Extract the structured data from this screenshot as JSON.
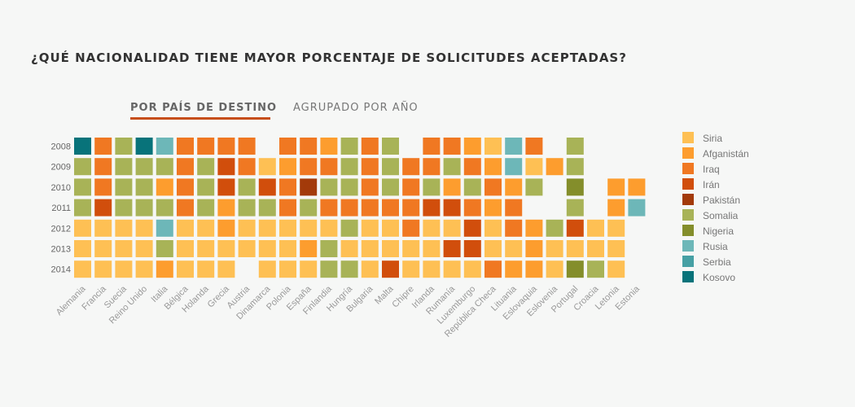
{
  "title": "¿QUÉ NACIONALIDAD TIENE MAYOR PORCENTAJE DE SOLICITUDES ACEPTADAS?",
  "tabs": [
    {
      "label": "POR PAÍS DE DESTINO",
      "active": true
    },
    {
      "label": "AGRUPADO POR AÑO",
      "active": false
    }
  ],
  "chart_data": {
    "type": "heatmap",
    "x": [
      "Alemania",
      "Francia",
      "Suecia",
      "Reino Unido",
      "Italia",
      "Bélgica",
      "Holanda",
      "Grecia",
      "Austria",
      "Dinamarca",
      "Polonia",
      "España",
      "Finlandia",
      "Hungría",
      "Bulgaria",
      "Malta",
      "Chipre",
      "Irlanda",
      "Rumanía",
      "Luxemburgo",
      "República Checa",
      "Lituania",
      "Eslovaquia",
      "Eslovenia",
      "Portugal",
      "Croacia",
      "Letonia",
      "Estonia"
    ],
    "y": [
      "2008",
      "2009",
      "2010",
      "2011",
      "2012",
      "2013",
      "2014"
    ],
    "legend": [
      {
        "name": "Siria",
        "color": "#fec054"
      },
      {
        "name": "Afganistán",
        "color": "#fd9d2e"
      },
      {
        "name": "Iraq",
        "color": "#f07822"
      },
      {
        "name": "Irán",
        "color": "#d14e0c"
      },
      {
        "name": "Pakistán",
        "color": "#a33a0a"
      },
      {
        "name": "Somalia",
        "color": "#a8b357"
      },
      {
        "name": "Nigeria",
        "color": "#848e2b"
      },
      {
        "name": "Rusia",
        "color": "#6db7b8"
      },
      {
        "name": "Serbia",
        "color": "#46a0a4"
      },
      {
        "name": "Kosovo",
        "color": "#08737a"
      }
    ],
    "cells": {
      "2008": [
        "Kosovo",
        "Iraq",
        "Somalia",
        "Kosovo",
        "Rusia",
        "Iraq",
        "Iraq",
        "Iraq",
        "Iraq",
        null,
        "Iraq",
        "Iraq",
        "Afganistán",
        "Somalia",
        "Iraq",
        "Somalia",
        null,
        "Iraq",
        "Iraq",
        "Afganistán",
        "Siria",
        "Rusia",
        "Iraq",
        null,
        "Somalia",
        null,
        null,
        null
      ],
      "2009": [
        "Somalia",
        "Iraq",
        "Somalia",
        "Somalia",
        "Somalia",
        "Iraq",
        "Somalia",
        "Irán",
        "Iraq",
        "Siria",
        "Afganistán",
        "Iraq",
        "Iraq",
        "Somalia",
        "Iraq",
        "Somalia",
        "Iraq",
        "Iraq",
        "Somalia",
        "Iraq",
        "Afganistán",
        "Rusia",
        "Siria",
        "Afganistán",
        "Somalia",
        null,
        null,
        null
      ],
      "2010": [
        "Somalia",
        "Iraq",
        "Somalia",
        "Somalia",
        "Afganistán",
        "Iraq",
        "Somalia",
        "Irán",
        "Somalia",
        "Irán",
        "Iraq",
        "Pakistán",
        "Somalia",
        "Somalia",
        "Iraq",
        "Somalia",
        "Iraq",
        "Somalia",
        "Afganistán",
        "Somalia",
        "Iraq",
        "Afganistán",
        "Somalia",
        null,
        "Nigeria",
        null,
        "Afganistán",
        "Afganistán"
      ],
      "2011": [
        "Somalia",
        "Irán",
        "Somalia",
        "Somalia",
        "Somalia",
        "Iraq",
        "Somalia",
        "Afganistán",
        "Somalia",
        "Somalia",
        "Iraq",
        "Somalia",
        "Iraq",
        "Iraq",
        "Iraq",
        "Iraq",
        "Iraq",
        "Irán",
        "Irán",
        "Iraq",
        "Afganistán",
        "Iraq",
        null,
        null,
        "Somalia",
        null,
        "Afganistán",
        "Rusia"
      ],
      "2012": [
        "Siria",
        "Siria",
        "Siria",
        "Siria",
        "Rusia",
        "Siria",
        "Siria",
        "Afganistán",
        "Siria",
        "Siria",
        "Siria",
        "Siria",
        "Siria",
        "Somalia",
        "Siria",
        "Siria",
        "Iraq",
        "Siria",
        "Siria",
        "Irán",
        "Siria",
        "Iraq",
        "Afganistán",
        "Somalia",
        "Irán",
        "Siria",
        "Siria",
        null
      ],
      "2013": [
        "Siria",
        "Siria",
        "Siria",
        "Siria",
        "Somalia",
        "Siria",
        "Siria",
        "Siria",
        "Siria",
        "Siria",
        "Siria",
        "Afganistán",
        "Somalia",
        "Siria",
        "Siria",
        "Siria",
        "Siria",
        "Siria",
        "Irán",
        "Irán",
        "Siria",
        "Siria",
        "Afganistán",
        "Siria",
        "Siria",
        "Siria",
        "Siria",
        null
      ],
      "2014": [
        "Siria",
        "Siria",
        "Siria",
        "Siria",
        "Afganistán",
        "Siria",
        "Siria",
        "Siria",
        null,
        "Siria",
        "Siria",
        "Siria",
        "Somalia",
        "Somalia",
        "Siria",
        "Irán",
        "Siria",
        "Siria",
        "Siria",
        "Siria",
        "Iraq",
        "Afganistán",
        "Afganistán",
        "Siria",
        "Nigeria",
        "Somalia",
        "Siria",
        null
      ]
    }
  }
}
